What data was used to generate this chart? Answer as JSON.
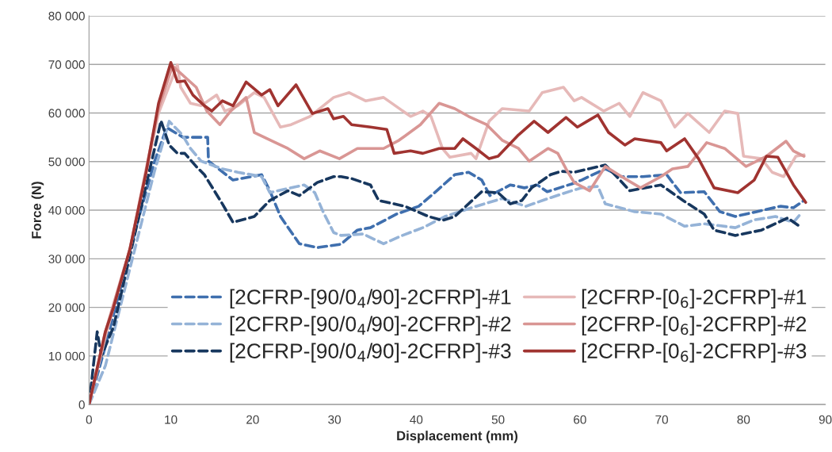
{
  "chart_data": {
    "type": "line",
    "xlabel": "Displacement (mm)",
    "ylabel": "Force (N)",
    "xlim": [
      0,
      90
    ],
    "xticks": [
      0,
      10,
      20,
      30,
      40,
      50,
      60,
      70,
      80,
      90
    ],
    "ylim": [
      0,
      80000
    ],
    "yticks": [
      {
        "value": 0,
        "label": "0"
      },
      {
        "value": 10000,
        "label": "10 000"
      },
      {
        "value": 20000,
        "label": "20 000"
      },
      {
        "value": 30000,
        "label": "30 000"
      },
      {
        "value": 40000,
        "label": "40 000"
      },
      {
        "value": 50000,
        "label": "50 000"
      },
      {
        "value": 60000,
        "label": "60 000"
      },
      {
        "value": 70000,
        "label": "70 000"
      },
      {
        "value": 80000,
        "label": "80 000"
      }
    ],
    "grid": "y",
    "legend": "bottom right",
    "marker": "none",
    "series": [
      {
        "name": "[2CFRP-[90/0$_{4}$/90]-2CFRP]-#1",
        "color": "#3f6fae",
        "line_style": "dashed",
        "x": [
          0,
          2,
          4,
          6,
          8,
          9.5,
          11.5,
          14.5,
          14.6,
          17.6,
          21.1,
          22.1,
          23.4,
          25.7,
          27.9,
          30.8,
          32.8,
          34.4,
          37.6,
          40.3,
          42.5,
          44.7,
          46.4,
          48.0,
          49.0,
          51.5,
          53.2,
          54.8,
          56.0,
          59.0,
          60.2,
          63.1,
          65.1,
          67.7,
          70.6,
          72.3,
          75.2,
          77.1,
          79.0,
          81.6,
          84.5,
          86.1,
          87.4
        ],
        "values": [
          0,
          12000,
          25000,
          38000,
          50000,
          57000,
          55000,
          55000,
          50100,
          46200,
          47300,
          44000,
          38700,
          33100,
          32300,
          33000,
          35900,
          36400,
          39200,
          40800,
          44000,
          47300,
          47800,
          46200,
          43000,
          45200,
          44600,
          45200,
          43800,
          45400,
          46200,
          48500,
          46900,
          46900,
          47300,
          43600,
          43800,
          39700,
          38700,
          39700,
          40800,
          40500,
          42000
        ]
      },
      {
        "name": "[2CFRP-[90/0$_{4}$/90]-2CFRP]-#2",
        "color": "#95b3d7",
        "line_style": "dashed",
        "x": [
          0,
          2,
          5,
          8,
          9.8,
          11.4,
          12.4,
          13.7,
          16.3,
          18.2,
          21.1,
          22.1,
          23.1,
          26.3,
          27.6,
          28.6,
          29.9,
          30.8,
          33.5,
          36.0,
          38.3,
          40.8,
          43.5,
          47.3,
          50.5,
          53.4,
          56.1,
          59.0,
          60.2,
          62.2,
          63.1,
          66.7,
          69.9,
          72.8,
          75.2,
          79.0,
          81.3,
          83.9,
          86.1,
          87.1
        ],
        "values": [
          0,
          8000,
          28000,
          48000,
          58300,
          55500,
          52700,
          50100,
          48500,
          47800,
          46900,
          43600,
          44000,
          45200,
          43600,
          39700,
          35400,
          34800,
          35100,
          33100,
          34800,
          36400,
          38700,
          40800,
          42400,
          40800,
          42400,
          44000,
          44600,
          44900,
          41300,
          39700,
          39200,
          36700,
          37200,
          36400,
          38000,
          38700,
          37500,
          39500
        ]
      },
      {
        "name": "[2CFRP-[90/0$_{4}$/90]-2CFRP]-#3",
        "color": "#17375e",
        "line_style": "dashed",
        "x": [
          0,
          1.0,
          1.5,
          3.0,
          6.0,
          8.8,
          9.8,
          10.8,
          11.7,
          13.1,
          14.1,
          16.3,
          17.6,
          20.2,
          22.1,
          24.3,
          25.7,
          27.9,
          29.9,
          30.8,
          32.1,
          34.4,
          35.4,
          38.6,
          41.5,
          43.2,
          44.7,
          48.0,
          50.0,
          51.5,
          52.9,
          54.1,
          56.4,
          57.7,
          59.3,
          63.1,
          64.5,
          66.1,
          69.9,
          72.6,
          75.2,
          76.4,
          79.0,
          82.2,
          85.4,
          87.1
        ],
        "values": [
          0,
          15000,
          10000,
          16000,
          38000,
          58400,
          53400,
          51700,
          51700,
          49000,
          47300,
          41300,
          37500,
          38700,
          42000,
          44000,
          43000,
          45700,
          46900,
          46900,
          46500,
          45200,
          42000,
          40800,
          38700,
          37900,
          38700,
          43800,
          43600,
          41300,
          42000,
          44600,
          47300,
          48000,
          47800,
          49300,
          46900,
          44000,
          45200,
          42000,
          39200,
          35900,
          34800,
          35900,
          38400,
          36400
        ]
      },
      {
        "name": "[2CFRP-[0$_{6}$]-2CFRP]-#1",
        "color": "#e6b9b8",
        "line_style": "solid",
        "x": [
          0,
          2,
          5,
          8.5,
          10.8,
          11.2,
          12.4,
          13.7,
          15.6,
          16.6,
          18.2,
          20.2,
          21.4,
          23.4,
          24.7,
          27.0,
          29.9,
          31.8,
          33.8,
          36.0,
          39.3,
          40.8,
          41.8,
          43.2,
          44.1,
          46.7,
          47.3,
          48.9,
          50.5,
          53.8,
          55.4,
          58.0,
          59.3,
          60.2,
          62.9,
          64.8,
          66.1,
          67.7,
          69.9,
          71.6,
          73.2,
          75.8,
          77.7,
          79.3,
          80.0,
          82.2,
          83.5,
          84.9,
          86.4,
          87.4
        ],
        "values": [
          0,
          14000,
          32000,
          60000,
          69900,
          65300,
          62000,
          61500,
          63700,
          60400,
          61500,
          64200,
          63200,
          57100,
          57600,
          59300,
          63200,
          64200,
          62500,
          63200,
          59300,
          60400,
          59300,
          52700,
          50900,
          51700,
          50600,
          58300,
          60900,
          60400,
          64200,
          65300,
          62500,
          63200,
          60400,
          62000,
          59300,
          64200,
          62500,
          57100,
          59900,
          56000,
          60400,
          59900,
          51100,
          50600,
          47800,
          46900,
          51100,
          51400
        ]
      },
      {
        "name": "[2CFRP-[0$_{6}$]-2CFRP]-#2",
        "color": "#d99694",
        "line_style": "solid",
        "x": [
          0,
          2,
          5,
          8.5,
          10.2,
          13.1,
          14.4,
          16.0,
          17.3,
          19.2,
          20.2,
          22.8,
          24.3,
          26.3,
          28.2,
          30.6,
          32.8,
          36.0,
          37.9,
          40.5,
          42.8,
          44.7,
          46.4,
          48.6,
          50.5,
          52.5,
          53.8,
          56.1,
          57.3,
          58.3,
          59.3,
          61.2,
          63.1,
          65.1,
          67.4,
          69.9,
          71.3,
          73.2,
          75.5,
          77.7,
          80.3,
          82.8,
          85.2,
          86.1,
          87.4
        ],
        "values": [
          0,
          15000,
          32000,
          61000,
          69700,
          65300,
          60400,
          57600,
          60400,
          63200,
          56000,
          53900,
          52700,
          50600,
          52200,
          50600,
          52700,
          52700,
          54400,
          57600,
          62000,
          60900,
          59300,
          57600,
          54400,
          52700,
          50100,
          52700,
          51700,
          48500,
          45700,
          44000,
          49000,
          46900,
          44600,
          46900,
          48500,
          49000,
          53900,
          52700,
          49000,
          51100,
          54200,
          52200,
          51100
        ]
      },
      {
        "name": "[2CFRP-[0$_{6}$]-2CFRP]-#3",
        "color": "#a03330",
        "line_style": "solid",
        "x": [
          0,
          2,
          3,
          5,
          7,
          8.5,
          10.0,
          10.8,
          11.7,
          12.7,
          14.1,
          15.0,
          16.3,
          17.6,
          19.2,
          21.1,
          22.1,
          23.1,
          25.3,
          27.3,
          29.2,
          29.9,
          31.1,
          32.1,
          34.4,
          36.4,
          37.3,
          39.3,
          40.8,
          42.8,
          44.7,
          45.7,
          47.3,
          48.9,
          50.0,
          52.5,
          54.4,
          56.1,
          58.3,
          59.7,
          60.9,
          62.2,
          63.5,
          65.5,
          66.7,
          69.9,
          70.6,
          72.8,
          74.5,
          76.4,
          79.3,
          81.3,
          82.8,
          84.2,
          86.1,
          87.6
        ],
        "values": [
          0,
          15000,
          20000,
          32000,
          48000,
          62000,
          70400,
          66400,
          66600,
          63700,
          61500,
          60400,
          62500,
          61500,
          66400,
          63700,
          64800,
          61500,
          65800,
          59900,
          60900,
          58800,
          59300,
          57600,
          57100,
          56600,
          51700,
          52200,
          51700,
          52700,
          52700,
          54700,
          52700,
          50600,
          51100,
          55500,
          58300,
          56000,
          59100,
          57100,
          58300,
          59600,
          56000,
          53400,
          54700,
          53900,
          52200,
          54700,
          50600,
          44600,
          43600,
          46200,
          51100,
          50900,
          45200,
          41600
        ]
      }
    ]
  }
}
